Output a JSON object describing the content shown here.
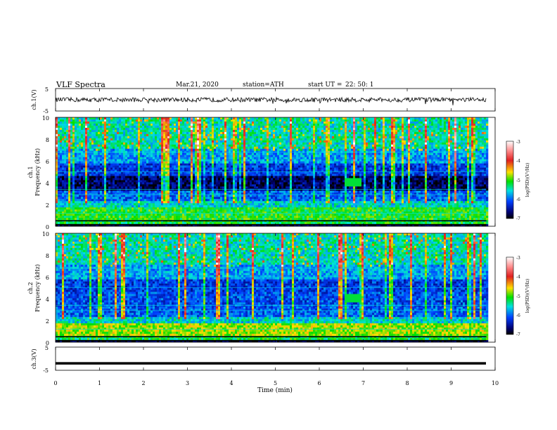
{
  "header": {
    "title": "VLF  Spectra",
    "date": "Mar.21, 2020",
    "station": "station=ATH",
    "start_label": "start  UT  =",
    "start_time": "22: 50: 1"
  },
  "colorbar": {
    "label": "log(PSD)(V²/Hz)",
    "ticks": [
      "-3",
      "-4",
      "-5",
      "-6",
      "-7"
    ],
    "colors": [
      "#ffffff",
      "#e02020",
      "#ffe000",
      "#00e000",
      "#00e0e0",
      "#0040ff",
      "#000070",
      "#000000"
    ]
  },
  "chart_data": [
    {
      "type": "line",
      "title": "",
      "ylabel": "ch.1(V)",
      "xlabel": "",
      "ylim": [
        -5,
        5
      ],
      "xlim": [
        0,
        10
      ],
      "y_ticks": [
        "5",
        "-5"
      ],
      "series": [
        {
          "x_range": [
            0,
            9.8
          ],
          "level": 0,
          "noise_amplitude": 1
        }
      ]
    },
    {
      "type": "heatmap",
      "ylabel_main": "ch.1",
      "ylabel": "Frequency  (kHz)",
      "ylim": [
        0,
        10
      ],
      "xlim": [
        0,
        10
      ],
      "y_ticks": [
        "10",
        "8",
        "6",
        "4",
        "2",
        "0"
      ],
      "data_x_range": [
        0,
        9.8
      ],
      "color_range": [
        -7,
        -3
      ]
    },
    {
      "type": "heatmap",
      "ylabel_main": "ch.2",
      "ylabel": "Frequency  (kHz)",
      "ylim": [
        0,
        10
      ],
      "xlim": [
        0,
        10
      ],
      "y_ticks": [
        "10",
        "8",
        "6",
        "4",
        "2",
        "0"
      ],
      "data_x_range": [
        0,
        9.8
      ],
      "color_range": [
        -7,
        -3
      ]
    },
    {
      "type": "line",
      "ylabel": "ch.3(V)",
      "ylim": [
        -5,
        5
      ],
      "xlim": [
        0,
        10
      ],
      "y_ticks": [
        "5",
        "-5"
      ],
      "xlabel": "Time  (min)",
      "x_ticks": [
        "0",
        "1",
        "2",
        "3",
        "4",
        "5",
        "6",
        "7",
        "8",
        "9",
        "10"
      ],
      "series": [
        {
          "x_range": [
            0,
            9.8
          ],
          "level": -2,
          "noise_amplitude": 0
        }
      ]
    }
  ]
}
